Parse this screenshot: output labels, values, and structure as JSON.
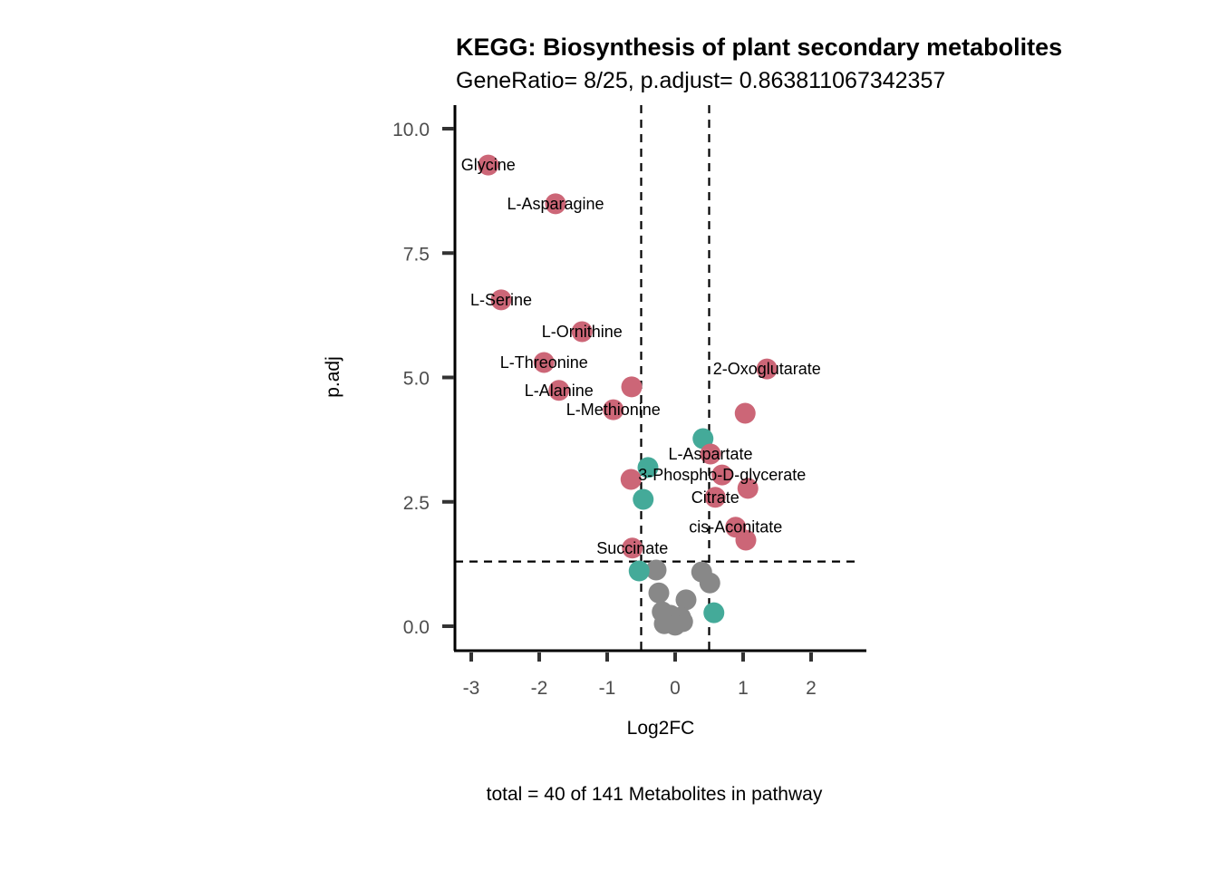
{
  "chart_data": {
    "type": "scatter",
    "title": "KEGG: Biosynthesis of plant secondary metabolites",
    "subtitle": "GeneRatio= 8/25, p.adjust= 0.863811067342357",
    "xlabel": "Log2FC",
    "ylabel": "p.adj",
    "caption": "total = 40 of 141 Metabolites in pathway",
    "xlim": [
      -3.3,
      2.8
    ],
    "ylim": [
      -0.5,
      10.5
    ],
    "x_ticks": [
      -3,
      -2,
      -1,
      0,
      1,
      2
    ],
    "x_tick_labels": [
      "-3",
      "-2",
      "-1",
      "0",
      "1",
      "2"
    ],
    "y_ticks": [
      0,
      2.5,
      5,
      7.5,
      10
    ],
    "y_tick_labels": [
      "0.0",
      "2.5",
      "5.0",
      "7.5",
      "10.0"
    ],
    "grid": false,
    "legend": "none",
    "thresholds": {
      "log2fc_low": -0.5,
      "log2fc_high": 0.5,
      "padj_line": 1.3
    },
    "colors": {
      "significant_pathway": "#CC6677",
      "significant_other": "#44AA99",
      "nonsignificant": "#888888"
    },
    "points": [
      {
        "label": "Glycine",
        "x": -2.75,
        "y": 9.27,
        "group": "significant_pathway"
      },
      {
        "label": "L-Asparagine",
        "x": -1.76,
        "y": 8.49,
        "group": "significant_pathway"
      },
      {
        "label": "L-Serine",
        "x": -2.56,
        "y": 6.56,
        "group": "significant_pathway"
      },
      {
        "label": "L-Ornithine",
        "x": -1.37,
        "y": 5.92,
        "group": "significant_pathway"
      },
      {
        "label": "L-Threonine",
        "x": -1.93,
        "y": 5.3,
        "group": "significant_pathway"
      },
      {
        "label": "L-Alanine",
        "x": -1.71,
        "y": 4.74,
        "group": "significant_pathway"
      },
      {
        "label": "",
        "x": -0.64,
        "y": 4.81,
        "group": "significant_pathway"
      },
      {
        "label": "L-Methionine",
        "x": -0.91,
        "y": 4.35,
        "group": "significant_pathway"
      },
      {
        "label": "2-Oxoglutarate",
        "x": 1.35,
        "y": 5.17,
        "group": "significant_pathway"
      },
      {
        "label": "",
        "x": 1.03,
        "y": 4.28,
        "group": "significant_pathway"
      },
      {
        "label": "",
        "x": 0.41,
        "y": 3.77,
        "group": "significant_other"
      },
      {
        "label": "L-Aspartate",
        "x": 0.52,
        "y": 3.46,
        "group": "significant_pathway"
      },
      {
        "label": "",
        "x": -0.4,
        "y": 3.19,
        "group": "significant_other"
      },
      {
        "label": "3-Phospho-D-glycerate",
        "x": 0.69,
        "y": 3.04,
        "group": "significant_pathway"
      },
      {
        "label": "",
        "x": -0.65,
        "y": 2.95,
        "group": "significant_pathway"
      },
      {
        "label": "",
        "x": 1.07,
        "y": 2.77,
        "group": "significant_pathway"
      },
      {
        "label": "Citrate",
        "x": 0.59,
        "y": 2.59,
        "group": "significant_pathway"
      },
      {
        "label": "",
        "x": -0.47,
        "y": 2.55,
        "group": "significant_other"
      },
      {
        "label": "cis-Aconitate",
        "x": 0.89,
        "y": 1.99,
        "group": "significant_pathway"
      },
      {
        "label": "",
        "x": 1.04,
        "y": 1.73,
        "group": "significant_pathway"
      },
      {
        "label": "Succinate",
        "x": -0.63,
        "y": 1.57,
        "group": "significant_pathway"
      },
      {
        "label": "",
        "x": -0.53,
        "y": 1.11,
        "group": "significant_other"
      },
      {
        "label": "",
        "x": 0.57,
        "y": 0.27,
        "group": "significant_other"
      },
      {
        "label": "",
        "x": -0.28,
        "y": 1.13,
        "group": "nonsignificant"
      },
      {
        "label": "",
        "x": 0.39,
        "y": 1.09,
        "group": "nonsignificant"
      },
      {
        "label": "",
        "x": 0.51,
        "y": 0.87,
        "group": "nonsignificant"
      },
      {
        "label": "",
        "x": -0.24,
        "y": 0.67,
        "group": "nonsignificant"
      },
      {
        "label": "",
        "x": 0.16,
        "y": 0.53,
        "group": "nonsignificant"
      },
      {
        "label": "",
        "x": -0.19,
        "y": 0.29,
        "group": "nonsignificant"
      },
      {
        "label": "",
        "x": 0.08,
        "y": 0.18,
        "group": "nonsignificant"
      },
      {
        "label": "",
        "x": -0.07,
        "y": 0.22,
        "group": "nonsignificant"
      },
      {
        "label": "",
        "x": -0.09,
        "y": 0.09,
        "group": "nonsignificant"
      },
      {
        "label": "",
        "x": 0.11,
        "y": 0.09,
        "group": "nonsignificant"
      },
      {
        "label": "",
        "x": -0.16,
        "y": 0.05,
        "group": "nonsignificant"
      },
      {
        "label": "",
        "x": 0.0,
        "y": 0.02,
        "group": "nonsignificant"
      }
    ]
  }
}
